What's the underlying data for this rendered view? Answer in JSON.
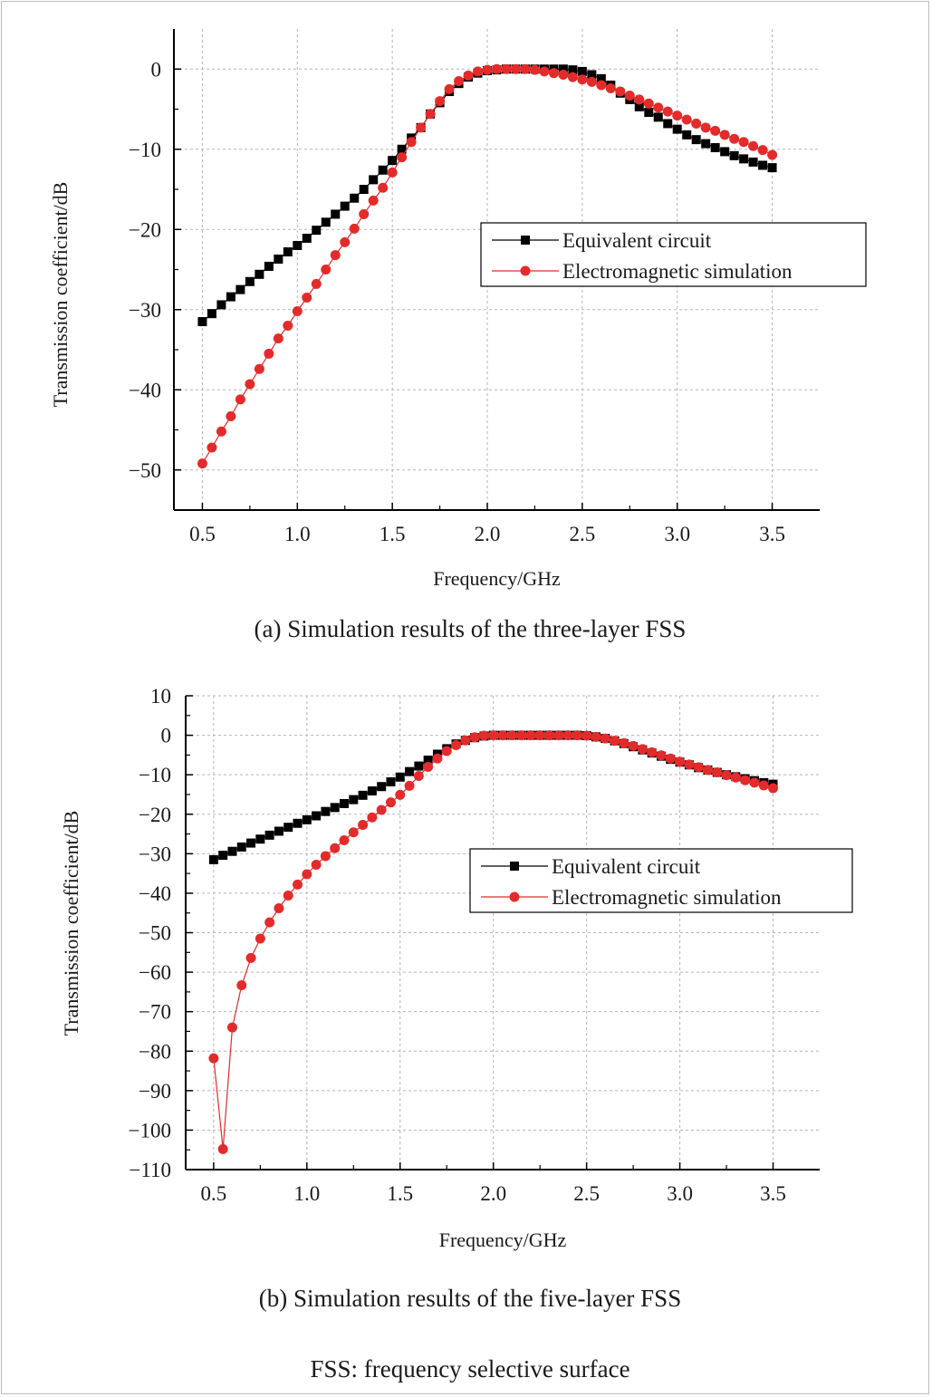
{
  "figure": {
    "footnote": "FSS: frequency selective surface"
  },
  "chart_data": [
    {
      "type": "line",
      "caption": "(a) Simulation results of the three-layer FSS",
      "xlabel": "Frequency/GHz",
      "ylabel": "Transmission coefficient/dB",
      "xlim": [
        0.35,
        3.75
      ],
      "ylim": [
        -55,
        5
      ],
      "xticks": [
        0.5,
        1.0,
        1.5,
        2.0,
        2.5,
        3.0,
        3.5
      ],
      "xtick_labels": [
        "0.5",
        "1.0",
        "1.5",
        "2.0",
        "2.5",
        "3.0",
        "3.5"
      ],
      "yticks": [
        0,
        -10,
        -20,
        -30,
        -40,
        -50
      ],
      "ytick_labels": [
        "0",
        "−10",
        "−20",
        "−30",
        "−40",
        "−50"
      ],
      "grid": true,
      "legend_position": "right",
      "series": [
        {
          "name": "Equivalent circuit",
          "color": "#000000",
          "marker": "square",
          "x": [
            0.5,
            0.55,
            0.6,
            0.65,
            0.7,
            0.75,
            0.8,
            0.85,
            0.9,
            0.95,
            1.0,
            1.05,
            1.1,
            1.15,
            1.2,
            1.25,
            1.3,
            1.35,
            1.4,
            1.45,
            1.5,
            1.55,
            1.6,
            1.65,
            1.7,
            1.75,
            1.8,
            1.85,
            1.9,
            1.95,
            2.0,
            2.05,
            2.1,
            2.15,
            2.2,
            2.25,
            2.3,
            2.35,
            2.4,
            2.45,
            2.5,
            2.55,
            2.6,
            2.65,
            2.7,
            2.75,
            2.8,
            2.85,
            2.9,
            2.95,
            3.0,
            3.05,
            3.1,
            3.15,
            3.2,
            3.25,
            3.3,
            3.35,
            3.4,
            3.45,
            3.5
          ],
          "values": [
            -31.5,
            -30.5,
            -29.4,
            -28.4,
            -27.5,
            -26.5,
            -25.6,
            -24.6,
            -23.7,
            -22.8,
            -22.0,
            -21.1,
            -20.1,
            -19.1,
            -18.1,
            -17.1,
            -16.1,
            -15.0,
            -13.8,
            -12.6,
            -11.4,
            -10.0,
            -8.6,
            -7.3,
            -5.6,
            -4.2,
            -2.8,
            -1.8,
            -1.0,
            -0.5,
            -0.2,
            -0.1,
            0.0,
            0.0,
            0.0,
            0.0,
            0.0,
            0.0,
            0.0,
            -0.1,
            -0.3,
            -0.7,
            -1.2,
            -2.0,
            -3.0,
            -3.8,
            -4.7,
            -5.4,
            -6.0,
            -6.8,
            -7.5,
            -8.2,
            -8.8,
            -9.3,
            -9.8,
            -10.3,
            -10.8,
            -11.2,
            -11.6,
            -12.0,
            -12.3
          ]
        },
        {
          "name": "Electromagnetic simulation",
          "color": "#e32b2b",
          "marker": "circle",
          "x": [
            0.5,
            0.55,
            0.6,
            0.65,
            0.7,
            0.75,
            0.8,
            0.85,
            0.9,
            0.95,
            1.0,
            1.05,
            1.1,
            1.15,
            1.2,
            1.25,
            1.3,
            1.35,
            1.4,
            1.45,
            1.5,
            1.55,
            1.6,
            1.65,
            1.7,
            1.75,
            1.8,
            1.85,
            1.9,
            1.95,
            2.0,
            2.05,
            2.1,
            2.15,
            2.2,
            2.25,
            2.3,
            2.35,
            2.4,
            2.45,
            2.5,
            2.55,
            2.6,
            2.65,
            2.7,
            2.75,
            2.8,
            2.85,
            2.9,
            2.95,
            3.0,
            3.05,
            3.1,
            3.15,
            3.2,
            3.25,
            3.3,
            3.35,
            3.4,
            3.45,
            3.5
          ],
          "values": [
            -49.2,
            -47.2,
            -45.2,
            -43.3,
            -41.2,
            -39.3,
            -37.4,
            -35.5,
            -33.6,
            -32.0,
            -30.2,
            -28.5,
            -26.8,
            -25.0,
            -23.2,
            -21.6,
            -19.9,
            -18.1,
            -16.4,
            -14.8,
            -12.9,
            -11.0,
            -9.1,
            -7.3,
            -5.6,
            -4.0,
            -2.5,
            -1.5,
            -0.8,
            -0.3,
            -0.1,
            0.0,
            0.0,
            0.0,
            0.0,
            -0.1,
            -0.3,
            -0.5,
            -0.7,
            -1.0,
            -1.3,
            -1.6,
            -2.0,
            -2.4,
            -2.8,
            -3.3,
            -3.8,
            -4.3,
            -4.8,
            -5.3,
            -5.8,
            -6.3,
            -6.8,
            -7.3,
            -7.7,
            -8.2,
            -8.7,
            -9.1,
            -9.6,
            -10.1,
            -10.7
          ]
        }
      ]
    },
    {
      "type": "line",
      "caption": "(b) Simulation results of the five-layer FSS",
      "xlabel": "Frequency/GHz",
      "ylabel": "Transmission coefficient/dB",
      "xlim": [
        0.35,
        3.75
      ],
      "ylim": [
        -110,
        10
      ],
      "xticks": [
        0.5,
        1.0,
        1.5,
        2.0,
        2.5,
        3.0,
        3.5
      ],
      "xtick_labels": [
        "0.5",
        "1.0",
        "1.5",
        "2.0",
        "2.5",
        "3.0",
        "3.5"
      ],
      "yticks": [
        10,
        0,
        -10,
        -20,
        -30,
        -40,
        -50,
        -60,
        -70,
        -80,
        -90,
        -100,
        -110
      ],
      "ytick_labels": [
        "10",
        "0",
        "−10",
        "−20",
        "−30",
        "−40",
        "−50",
        "−60",
        "−70",
        "−80",
        "−90",
        "−100",
        "−110"
      ],
      "grid": true,
      "legend_position": "right",
      "series": [
        {
          "name": "Equivalent circuit",
          "color": "#000000",
          "marker": "square",
          "x": [
            0.5,
            0.55,
            0.6,
            0.65,
            0.7,
            0.75,
            0.8,
            0.85,
            0.9,
            0.95,
            1.0,
            1.05,
            1.1,
            1.15,
            1.2,
            1.25,
            1.3,
            1.35,
            1.4,
            1.45,
            1.5,
            1.55,
            1.6,
            1.65,
            1.7,
            1.75,
            1.8,
            1.85,
            1.9,
            1.95,
            2.0,
            2.05,
            2.1,
            2.15,
            2.2,
            2.25,
            2.3,
            2.35,
            2.4,
            2.45,
            2.5,
            2.55,
            2.6,
            2.65,
            2.7,
            2.75,
            2.8,
            2.85,
            2.9,
            2.95,
            3.0,
            3.05,
            3.1,
            3.15,
            3.2,
            3.25,
            3.3,
            3.35,
            3.4,
            3.45,
            3.5
          ],
          "values": [
            -31.5,
            -30.4,
            -29.4,
            -28.3,
            -27.3,
            -26.3,
            -25.3,
            -24.3,
            -23.3,
            -22.3,
            -21.4,
            -20.4,
            -19.3,
            -18.3,
            -17.3,
            -16.3,
            -15.2,
            -14.1,
            -13.0,
            -11.8,
            -10.6,
            -9.2,
            -7.8,
            -6.3,
            -4.8,
            -3.4,
            -2.2,
            -1.3,
            -0.6,
            -0.2,
            0.0,
            0.0,
            0.0,
            0.0,
            0.0,
            0.0,
            0.0,
            0.0,
            0.0,
            0.0,
            -0.1,
            -0.4,
            -0.8,
            -1.4,
            -2.1,
            -2.9,
            -3.7,
            -4.5,
            -5.3,
            -6.1,
            -6.8,
            -7.5,
            -8.2,
            -8.8,
            -9.4,
            -10.0,
            -10.5,
            -11.0,
            -11.5,
            -12.0,
            -12.4
          ]
        },
        {
          "name": "Electromagnetic simulation",
          "color": "#e32b2b",
          "marker": "circle",
          "x": [
            0.5,
            0.55,
            0.6,
            0.65,
            0.7,
            0.75,
            0.8,
            0.85,
            0.9,
            0.95,
            1.0,
            1.05,
            1.1,
            1.15,
            1.2,
            1.25,
            1.3,
            1.35,
            1.4,
            1.45,
            1.5,
            1.55,
            1.6,
            1.65,
            1.7,
            1.75,
            1.8,
            1.85,
            1.9,
            1.95,
            2.0,
            2.05,
            2.1,
            2.15,
            2.2,
            2.25,
            2.3,
            2.35,
            2.4,
            2.45,
            2.5,
            2.55,
            2.6,
            2.65,
            2.7,
            2.75,
            2.8,
            2.85,
            2.9,
            2.95,
            3.0,
            3.05,
            3.1,
            3.15,
            3.2,
            3.25,
            3.3,
            3.35,
            3.4,
            3.45,
            3.5
          ],
          "values": [
            -81.8,
            -104.8,
            -74.0,
            -63.3,
            -56.4,
            -51.5,
            -47.4,
            -43.8,
            -40.6,
            -37.8,
            -35.2,
            -32.8,
            -30.6,
            -28.6,
            -26.6,
            -24.6,
            -22.7,
            -20.8,
            -18.9,
            -17.0,
            -15.1,
            -12.8,
            -10.3,
            -8.0,
            -5.9,
            -4.0,
            -2.5,
            -1.3,
            -0.5,
            -0.1,
            0.0,
            0.0,
            0.0,
            0.0,
            0.0,
            0.0,
            0.0,
            0.0,
            0.0,
            0.0,
            -0.1,
            -0.4,
            -0.8,
            -1.4,
            -2.0,
            -2.7,
            -3.5,
            -4.3,
            -5.1,
            -5.9,
            -6.7,
            -7.4,
            -8.1,
            -8.8,
            -9.4,
            -10.1,
            -10.7,
            -11.4,
            -12.0,
            -12.7,
            -13.4
          ]
        }
      ]
    }
  ]
}
